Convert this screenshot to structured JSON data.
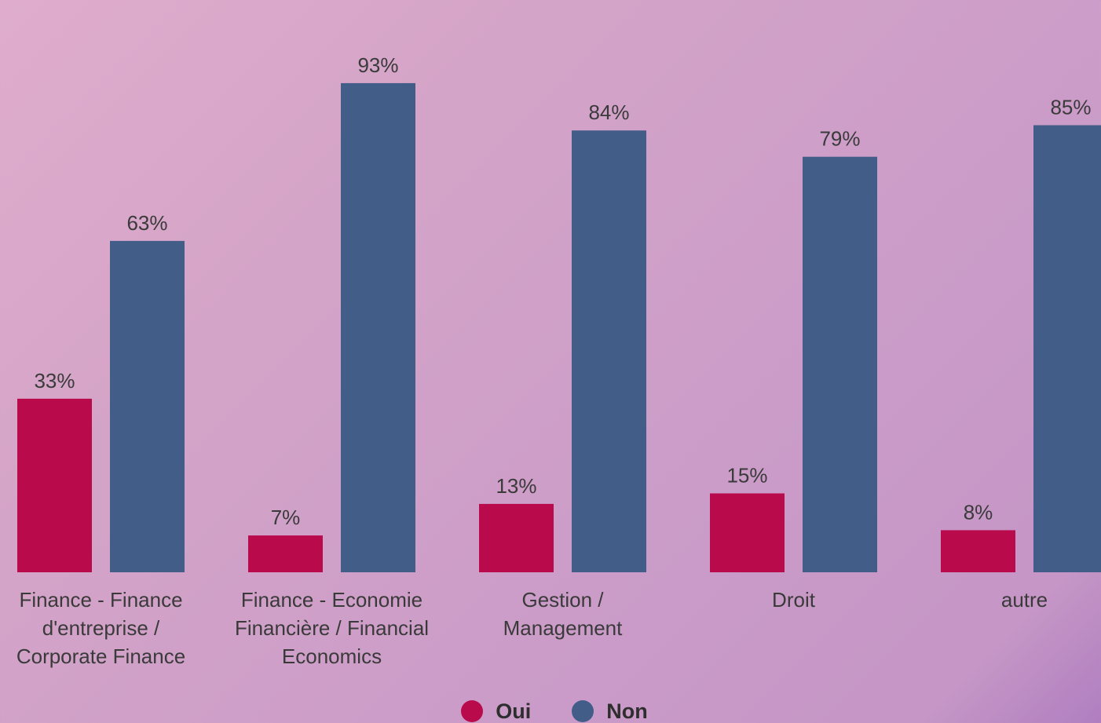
{
  "chart_data": {
    "type": "bar",
    "title": "",
    "xlabel": "",
    "ylabel": "",
    "ylim": [
      0,
      100
    ],
    "grid": false,
    "legend_position": "bottom-center",
    "categories": [
      [
        "Finance - Finance",
        "d'entreprise /",
        "Corporate Finance"
      ],
      [
        "Finance - Economie",
        "Financière / Financial",
        "Economics"
      ],
      [
        "Gestion /",
        "Management"
      ],
      [
        "Droit"
      ],
      [
        "autre"
      ]
    ],
    "series": [
      {
        "name": "Oui",
        "color": "#b90a4b",
        "values": [
          33,
          7,
          13,
          15,
          8
        ],
        "labels": [
          "33%",
          "7%",
          "13%",
          "15%",
          "8%"
        ]
      },
      {
        "name": "Non",
        "color": "#435d89",
        "values": [
          63,
          93,
          84,
          79,
          85
        ],
        "labels": [
          "63%",
          "93%",
          "84%",
          "79%",
          "85%"
        ]
      }
    ]
  },
  "legend": {
    "items": [
      {
        "label": "Oui",
        "color": "#b90a4b"
      },
      {
        "label": "Non",
        "color": "#435d89"
      }
    ]
  }
}
